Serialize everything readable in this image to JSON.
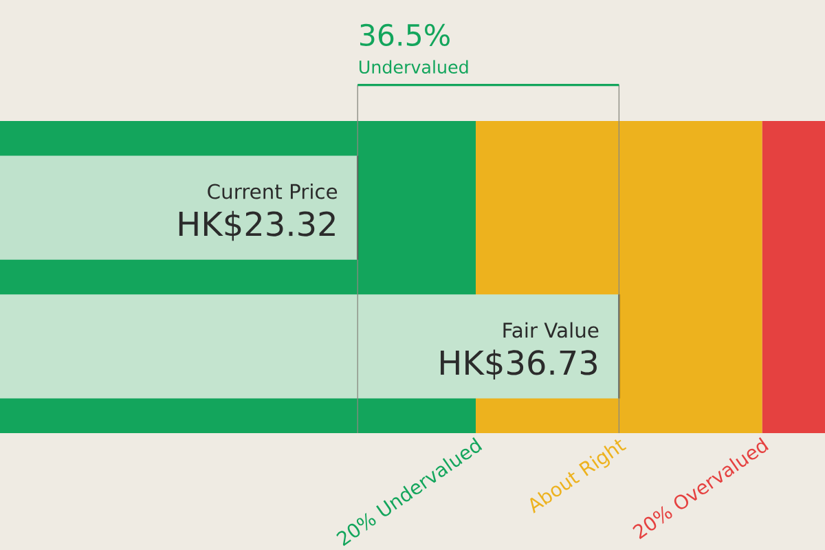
{
  "chart_data": {
    "type": "bar",
    "orientation": "horizontal",
    "categories": [
      "Current Price",
      "Fair Value"
    ],
    "values": [
      23.32,
      36.73
    ],
    "value_labels": [
      "HK$23.32",
      "HK$36.73"
    ],
    "colors": [
      "#bfe2cc",
      "#c4e4cf"
    ],
    "xlim": [
      4.97,
      47.3
    ],
    "bands": [
      {
        "axis": "x",
        "from": 4.97,
        "to": 29.38,
        "label": "20% Undervalued",
        "color": "#13a55c"
      },
      {
        "axis": "x",
        "from": 29.38,
        "to": 44.08,
        "label": "About Right",
        "color": "#edb21e"
      },
      {
        "axis": "x",
        "from": 44.08,
        "to": 47.3,
        "label": "20% Overvalued",
        "color": "#e54140"
      }
    ],
    "ref_lines": [
      {
        "axis": "x",
        "value": 23.32,
        "color": "#8a8a80"
      },
      {
        "axis": "x",
        "value": 36.73,
        "color": "#8a8a80"
      }
    ],
    "annotations": [
      "36.5%",
      "Undervalued"
    ]
  }
}
